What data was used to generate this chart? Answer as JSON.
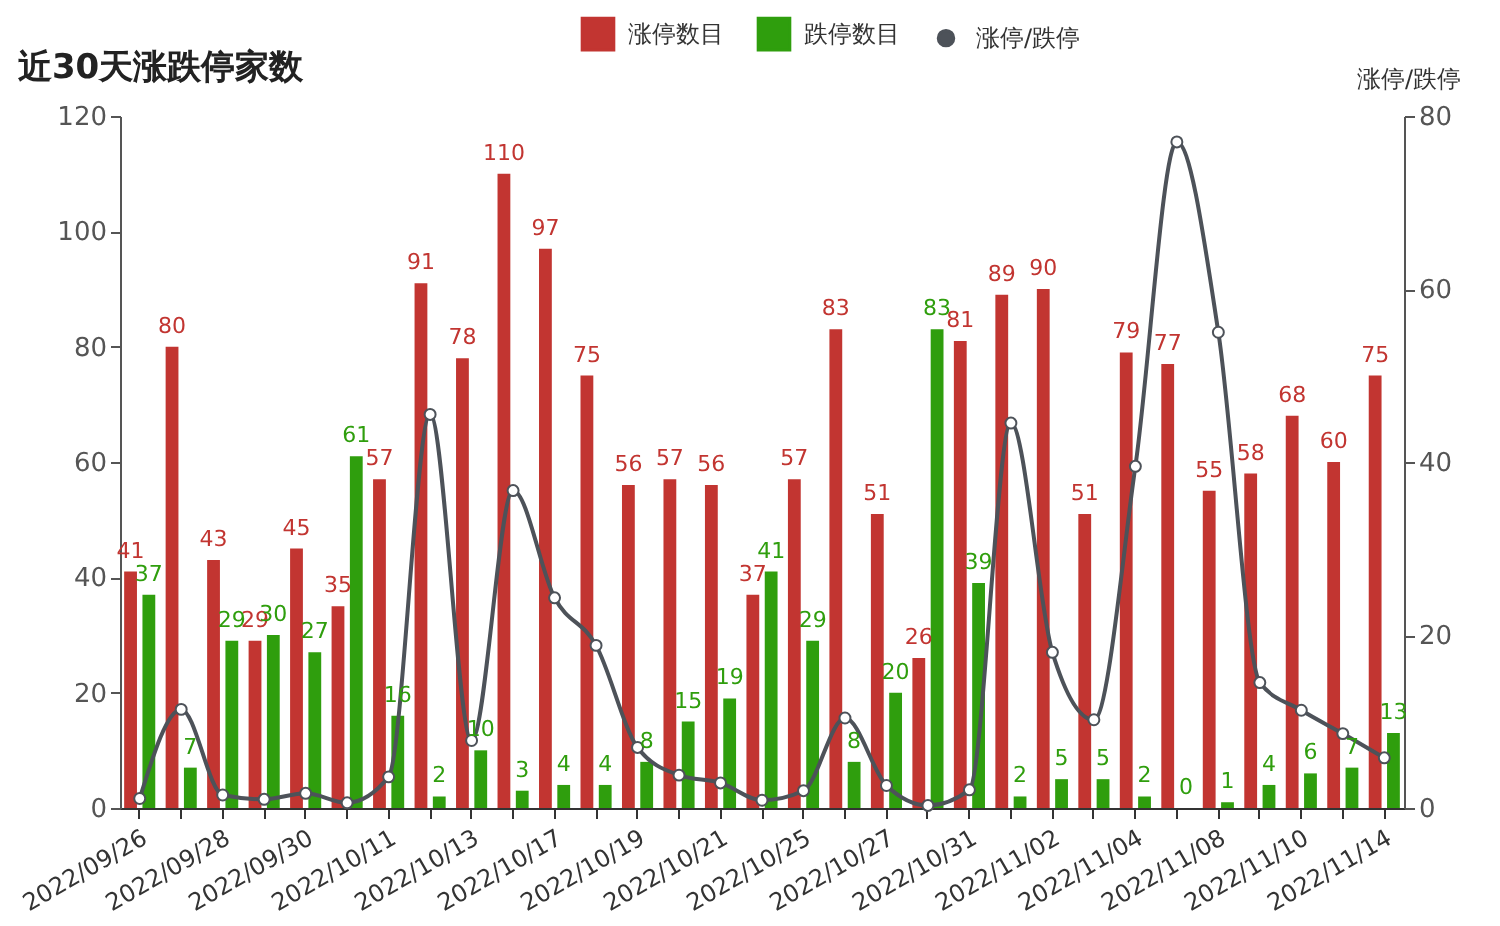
{
  "chart_data": {
    "type": "bar",
    "title": "近30天涨跌停家数",
    "categories": [
      "2022/09/26",
      null,
      "2022/09/28",
      null,
      "2022/09/30",
      null,
      "2022/10/11",
      null,
      "2022/10/13",
      null,
      "2022/10/17",
      null,
      "2022/10/19",
      null,
      "2022/10/21",
      null,
      "2022/10/25",
      null,
      "2022/10/27",
      null,
      "2022/10/31",
      null,
      "2022/11/02",
      null,
      "2022/11/04",
      null,
      "2022/11/08",
      null,
      "2022/11/10",
      null,
      "2022/11/14"
    ],
    "series": [
      {
        "name": "涨停数目",
        "color": "#c23531",
        "values": [
          41,
          80,
          43,
          29,
          45,
          35,
          57,
          91,
          78,
          110,
          97,
          75,
          56,
          57,
          56,
          37,
          57,
          83,
          51,
          26,
          81,
          89,
          90,
          51,
          79,
          77,
          55,
          58,
          68,
          60,
          75
        ],
        "value_labels": [
          "41",
          "80",
          "43",
          "29",
          "45",
          "35",
          "57",
          "91",
          "78",
          "110",
          "97",
          "75",
          "56",
          "57",
          "56",
          "37",
          "57",
          "83",
          "51",
          "26",
          "81",
          "89",
          "90",
          "51",
          "79",
          "77",
          "55",
          "58",
          "68",
          "60",
          "75"
        ]
      },
      {
        "name": "跌停数目",
        "color": "#2f9e0d",
        "values": [
          37,
          7,
          29,
          30,
          27,
          61,
          16,
          2,
          10,
          3,
          4,
          4,
          8,
          15,
          19,
          41,
          29,
          8,
          20,
          83,
          39,
          2,
          5,
          5,
          2,
          0,
          1,
          4,
          6,
          7,
          13
        ],
        "value_labels": [
          "37",
          "7",
          "29",
          "30",
          "27",
          "61",
          "16",
          "2",
          "10",
          "3",
          "4",
          "4",
          "8",
          "15",
          "19",
          "41",
          "29",
          "8",
          "20",
          "83",
          "39",
          "2",
          "5",
          "5",
          "2",
          "0",
          "1",
          "4",
          "6",
          "7",
          "13"
        ]
      },
      {
        "name": "涨停/跌停",
        "type": "line",
        "axis": "y2",
        "color": "#4d5259",
        "values": [
          1.1,
          11.4,
          1.5,
          1.0,
          1.7,
          0.6,
          3.6,
          45.5,
          7.8,
          36.7,
          24.3,
          18.8,
          7.0,
          3.8,
          2.9,
          0.9,
          2.0,
          10.4,
          2.6,
          0.3,
          2.1,
          44.5,
          18.0,
          10.2,
          39.5,
          77,
          55.0,
          14.5,
          11.3,
          8.6,
          5.8
        ]
      }
    ],
    "y2label": "涨停/跌停",
    "ylim": [
      0,
      120
    ],
    "yticks": [
      0,
      20,
      40,
      60,
      80,
      100,
      120
    ],
    "y2lim": [
      0,
      80
    ],
    "y2ticks": [
      0,
      20,
      40,
      60,
      80
    ],
    "legend": "top",
    "grid": false,
    "marker": "circle",
    "line_style": "solid"
  }
}
